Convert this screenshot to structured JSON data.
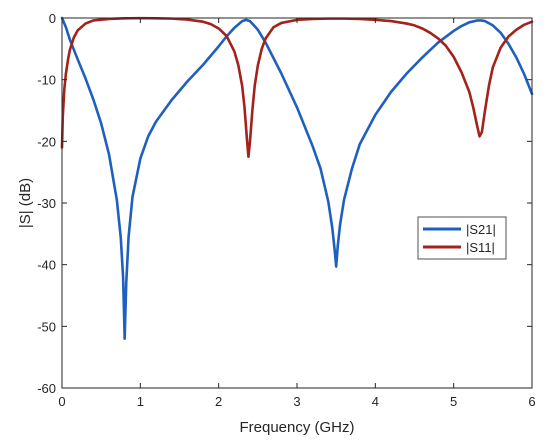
{
  "chart_data": {
    "type": "line",
    "xlabel": "Frequency (GHz)",
    "ylabel": "|S| (dB)",
    "xlim": [
      0,
      6
    ],
    "ylim": [
      -60,
      0
    ],
    "xticks": [
      0,
      1,
      2,
      3,
      4,
      5,
      6
    ],
    "yticks": [
      0,
      -10,
      -20,
      -30,
      -40,
      -50,
      -60
    ],
    "grid": false,
    "legend_position": "right",
    "series": [
      {
        "name": "|S21|",
        "color": "#1f5fbf",
        "x": [
          0,
          0.05,
          0.1,
          0.2,
          0.3,
          0.4,
          0.5,
          0.6,
          0.7,
          0.75,
          0.78,
          0.8,
          0.82,
          0.85,
          0.9,
          1.0,
          1.1,
          1.2,
          1.4,
          1.6,
          1.8,
          2.0,
          2.1,
          2.2,
          2.3,
          2.35,
          2.4,
          2.5,
          2.6,
          2.8,
          3.0,
          3.2,
          3.3,
          3.4,
          3.45,
          3.48,
          3.5,
          3.52,
          3.55,
          3.6,
          3.7,
          3.8,
          4.0,
          4.2,
          4.4,
          4.6,
          4.8,
          5.0,
          5.1,
          5.2,
          5.3,
          5.35,
          5.4,
          5.5,
          5.6,
          5.7,
          5.8,
          5.9,
          6.0
        ],
        "y": [
          0,
          -1.5,
          -3.5,
          -6.7,
          -9.8,
          -13.2,
          -17.1,
          -22.1,
          -29.5,
          -35.6,
          -42.0,
          -52.0,
          -43.0,
          -35.5,
          -29.0,
          -22.8,
          -19.2,
          -16.8,
          -13.3,
          -10.3,
          -7.6,
          -4.6,
          -3.0,
          -1.6,
          -0.5,
          -0.3,
          -0.5,
          -1.9,
          -4.0,
          -9.0,
          -14.5,
          -20.8,
          -24.4,
          -29.8,
          -34.0,
          -37.5,
          -40.3,
          -37.0,
          -33.5,
          -29.5,
          -24.5,
          -20.5,
          -15.7,
          -12.0,
          -9.0,
          -6.4,
          -4.0,
          -2.1,
          -1.3,
          -0.7,
          -0.4,
          -0.4,
          -0.5,
          -1.2,
          -2.4,
          -4.2,
          -6.4,
          -9.1,
          -12.3
        ]
      },
      {
        "name": "|S11|",
        "color": "#a3221b",
        "x": [
          0,
          0.01,
          0.03,
          0.05,
          0.08,
          0.1,
          0.15,
          0.2,
          0.3,
          0.4,
          0.6,
          0.8,
          1.0,
          1.2,
          1.4,
          1.6,
          1.8,
          1.9,
          2.0,
          2.1,
          2.2,
          2.25,
          2.3,
          2.33,
          2.36,
          2.38,
          2.4,
          2.43,
          2.46,
          2.5,
          2.55,
          2.6,
          2.7,
          2.8,
          3.0,
          3.2,
          3.4,
          3.6,
          3.8,
          4.0,
          4.2,
          4.4,
          4.5,
          4.6,
          4.7,
          4.8,
          4.9,
          5.0,
          5.1,
          5.2,
          5.25,
          5.3,
          5.33,
          5.36,
          5.4,
          5.45,
          5.5,
          5.6,
          5.7,
          5.8,
          5.9,
          6.0
        ],
        "y": [
          -21.0,
          -16.0,
          -11.5,
          -9.0,
          -6.5,
          -5.2,
          -3.2,
          -2.0,
          -0.9,
          -0.4,
          -0.15,
          -0.05,
          -0.02,
          -0.05,
          -0.1,
          -0.25,
          -0.6,
          -1.0,
          -1.7,
          -2.9,
          -5.4,
          -7.6,
          -11.0,
          -14.5,
          -19.5,
          -22.5,
          -20.0,
          -15.0,
          -11.0,
          -7.7,
          -5.0,
          -3.3,
          -1.5,
          -0.8,
          -0.3,
          -0.15,
          -0.1,
          -0.1,
          -0.15,
          -0.3,
          -0.5,
          -0.9,
          -1.2,
          -1.7,
          -2.4,
          -3.3,
          -4.5,
          -6.3,
          -8.8,
          -12.0,
          -14.5,
          -17.5,
          -19.2,
          -18.5,
          -15.0,
          -11.0,
          -8.0,
          -4.8,
          -3.0,
          -1.9,
          -1.1,
          -0.6
        ]
      }
    ]
  }
}
